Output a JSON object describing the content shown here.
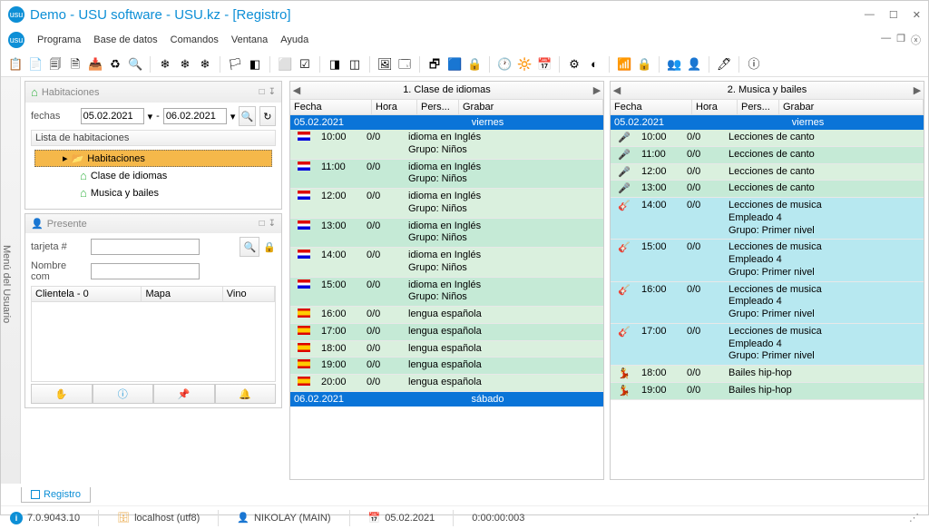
{
  "window": {
    "title": "Demo - USU software - USU.kz - [Registro]"
  },
  "menus": [
    "Programa",
    "Base de datos",
    "Comandos",
    "Ventana",
    "Ayuda"
  ],
  "toolbar_icons": [
    "📋",
    "📄",
    "🗐",
    "🗎",
    "📥",
    "♻",
    "🔍",
    "",
    "❄",
    "❄",
    "❄",
    "",
    "🏳",
    "◧",
    "",
    "⬜",
    "☑",
    "",
    "◨",
    "◫",
    "",
    "🖼",
    "🗔",
    "",
    "🗗",
    "🟦",
    "🔒",
    "",
    "🕐",
    "🔆",
    "📅",
    "",
    "⚙",
    "◐",
    "",
    "📶",
    "🔒",
    "",
    "👥",
    "👤",
    "",
    "🖊",
    "",
    "ⓘ"
  ],
  "sidebar": {
    "label": "Menú del Usuario"
  },
  "rooms_panel": {
    "title": "Habitaciones",
    "dates_label": "fechas",
    "date_from": "05.02.2021",
    "date_to": "06.02.2021",
    "list_label": "Lista de habitaciones",
    "root": "Habitaciones",
    "items": [
      "Clase de idiomas",
      "Musica y bailes"
    ]
  },
  "present_panel": {
    "title": "Presente",
    "card_label": "tarjeta #",
    "name_label": "Nombre com",
    "clients_col": "Clientela - 0",
    "map_col": "Mapa",
    "wine_col": "Vino"
  },
  "schedule1": {
    "title": "1. Clase de idiomas",
    "cols": [
      "Fecha",
      "Hora",
      "Pers...",
      "Grabar"
    ],
    "date": "05.02.2021",
    "day": "viernes",
    "date2": "06.02.2021",
    "day2": "sábado",
    "rows": [
      {
        "cls": "a",
        "icon": "en",
        "h": "10:00",
        "p": "0/0",
        "g": "idioma en Inglés\nGrupo: Niños"
      },
      {
        "cls": "b",
        "icon": "en",
        "h": "11:00",
        "p": "0/0",
        "g": "idioma en Inglés\nGrupo: Niños"
      },
      {
        "cls": "a",
        "icon": "en",
        "h": "12:00",
        "p": "0/0",
        "g": "idioma en Inglés\nGrupo: Niños"
      },
      {
        "cls": "b",
        "icon": "en",
        "h": "13:00",
        "p": "0/0",
        "g": "idioma en Inglés\nGrupo: Niños"
      },
      {
        "cls": "a",
        "icon": "en",
        "h": "14:00",
        "p": "0/0",
        "g": "idioma en Inglés\nGrupo: Niños"
      },
      {
        "cls": "b",
        "icon": "en",
        "h": "15:00",
        "p": "0/0",
        "g": "idioma en Inglés\nGrupo: Niños"
      },
      {
        "cls": "a",
        "icon": "es",
        "h": "16:00",
        "p": "0/0",
        "g": "lengua española"
      },
      {
        "cls": "b",
        "icon": "es",
        "h": "17:00",
        "p": "0/0",
        "g": "lengua española"
      },
      {
        "cls": "a",
        "icon": "es",
        "h": "18:00",
        "p": "0/0",
        "g": "lengua española"
      },
      {
        "cls": "b",
        "icon": "es",
        "h": "19:00",
        "p": "0/0",
        "g": "lengua española"
      },
      {
        "cls": "a",
        "icon": "es",
        "h": "20:00",
        "p": "0/0",
        "g": "lengua española"
      }
    ]
  },
  "schedule2": {
    "title": "2. Musica y bailes",
    "cols": [
      "Fecha",
      "Hora",
      "Pers...",
      "Grabar"
    ],
    "date": "05.02.2021",
    "day": "viernes",
    "rows": [
      {
        "cls": "a",
        "icon": "mic",
        "h": "10:00",
        "p": "0/0",
        "g": "Lecciones de canto"
      },
      {
        "cls": "b",
        "icon": "mic",
        "h": "11:00",
        "p": "0/0",
        "g": "Lecciones de canto"
      },
      {
        "cls": "a",
        "icon": "mic",
        "h": "12:00",
        "p": "0/0",
        "g": "Lecciones de canto"
      },
      {
        "cls": "b",
        "icon": "mic",
        "h": "13:00",
        "p": "0/0",
        "g": "Lecciones de canto"
      },
      {
        "cls": "c",
        "icon": "guitar",
        "h": "14:00",
        "p": "0/0",
        "g": "Lecciones de musica\nEmpleado 4\nGrupo: Primer nivel"
      },
      {
        "cls": "c",
        "icon": "guitar",
        "h": "15:00",
        "p": "0/0",
        "g": "Lecciones de musica\nEmpleado 4\nGrupo: Primer nivel"
      },
      {
        "cls": "c",
        "icon": "guitar",
        "h": "16:00",
        "p": "0/0",
        "g": "Lecciones de musica\nEmpleado 4\nGrupo: Primer nivel"
      },
      {
        "cls": "c",
        "icon": "guitar",
        "h": "17:00",
        "p": "0/0",
        "g": "Lecciones de musica\nEmpleado 4\nGrupo: Primer nivel"
      },
      {
        "cls": "a",
        "icon": "dance",
        "h": "18:00",
        "p": "0/0",
        "g": "Bailes hip-hop"
      },
      {
        "cls": "b",
        "icon": "dance",
        "h": "19:00",
        "p": "0/0",
        "g": "Bailes hip-hop"
      }
    ]
  },
  "tab": {
    "label": "Registro"
  },
  "status": {
    "version": "7.0.9043.10",
    "host": "localhost (utf8)",
    "user": "NIKOLAY (MAIN)",
    "date": "05.02.2021",
    "time": "0:00:00:003"
  },
  "colors": {
    "accent": "#0d8fd6",
    "date_row": "#0a74d8",
    "row_a": "#daf0de",
    "row_b": "#c5ead6",
    "row_c": "#b7e8f0",
    "selected": "#f5b84a"
  }
}
